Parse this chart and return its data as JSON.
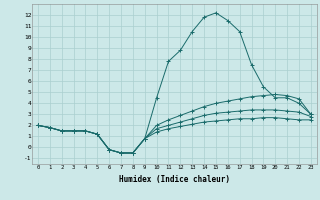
{
  "xlabel": "Humidex (Indice chaleur)",
  "ylabel": "",
  "background_color": "#cce8e8",
  "grid_color": "#aacfcf",
  "line_color": "#1a6b6b",
  "xlim": [
    -0.5,
    23.5
  ],
  "ylim": [
    -1.5,
    13.0
  ],
  "xticks": [
    0,
    1,
    2,
    3,
    4,
    5,
    6,
    7,
    8,
    9,
    10,
    11,
    12,
    13,
    14,
    15,
    16,
    17,
    18,
    19,
    20,
    21,
    22,
    23
  ],
  "yticks": [
    -1,
    0,
    1,
    2,
    3,
    4,
    5,
    6,
    7,
    8,
    9,
    10,
    11,
    12
  ],
  "series": [
    [
      2.0,
      1.8,
      1.5,
      1.5,
      1.5,
      1.2,
      -0.2,
      -0.5,
      -0.5,
      0.8,
      4.5,
      7.8,
      8.8,
      10.5,
      11.8,
      12.2,
      11.5,
      10.5,
      7.5,
      5.5,
      4.5,
      4.5,
      4.0,
      3.0
    ],
    [
      2.0,
      1.8,
      1.5,
      1.5,
      1.5,
      1.2,
      -0.2,
      -0.5,
      -0.5,
      0.8,
      2.0,
      2.5,
      2.9,
      3.3,
      3.7,
      4.0,
      4.2,
      4.4,
      4.6,
      4.7,
      4.8,
      4.7,
      4.4,
      3.0
    ],
    [
      2.0,
      1.8,
      1.5,
      1.5,
      1.5,
      1.2,
      -0.2,
      -0.5,
      -0.5,
      0.8,
      1.7,
      2.0,
      2.3,
      2.6,
      2.9,
      3.1,
      3.2,
      3.3,
      3.4,
      3.4,
      3.4,
      3.3,
      3.2,
      2.8
    ],
    [
      2.0,
      1.8,
      1.5,
      1.5,
      1.5,
      1.2,
      -0.2,
      -0.5,
      -0.5,
      0.8,
      1.4,
      1.7,
      1.9,
      2.1,
      2.3,
      2.4,
      2.5,
      2.6,
      2.6,
      2.7,
      2.7,
      2.6,
      2.5,
      2.5
    ]
  ]
}
